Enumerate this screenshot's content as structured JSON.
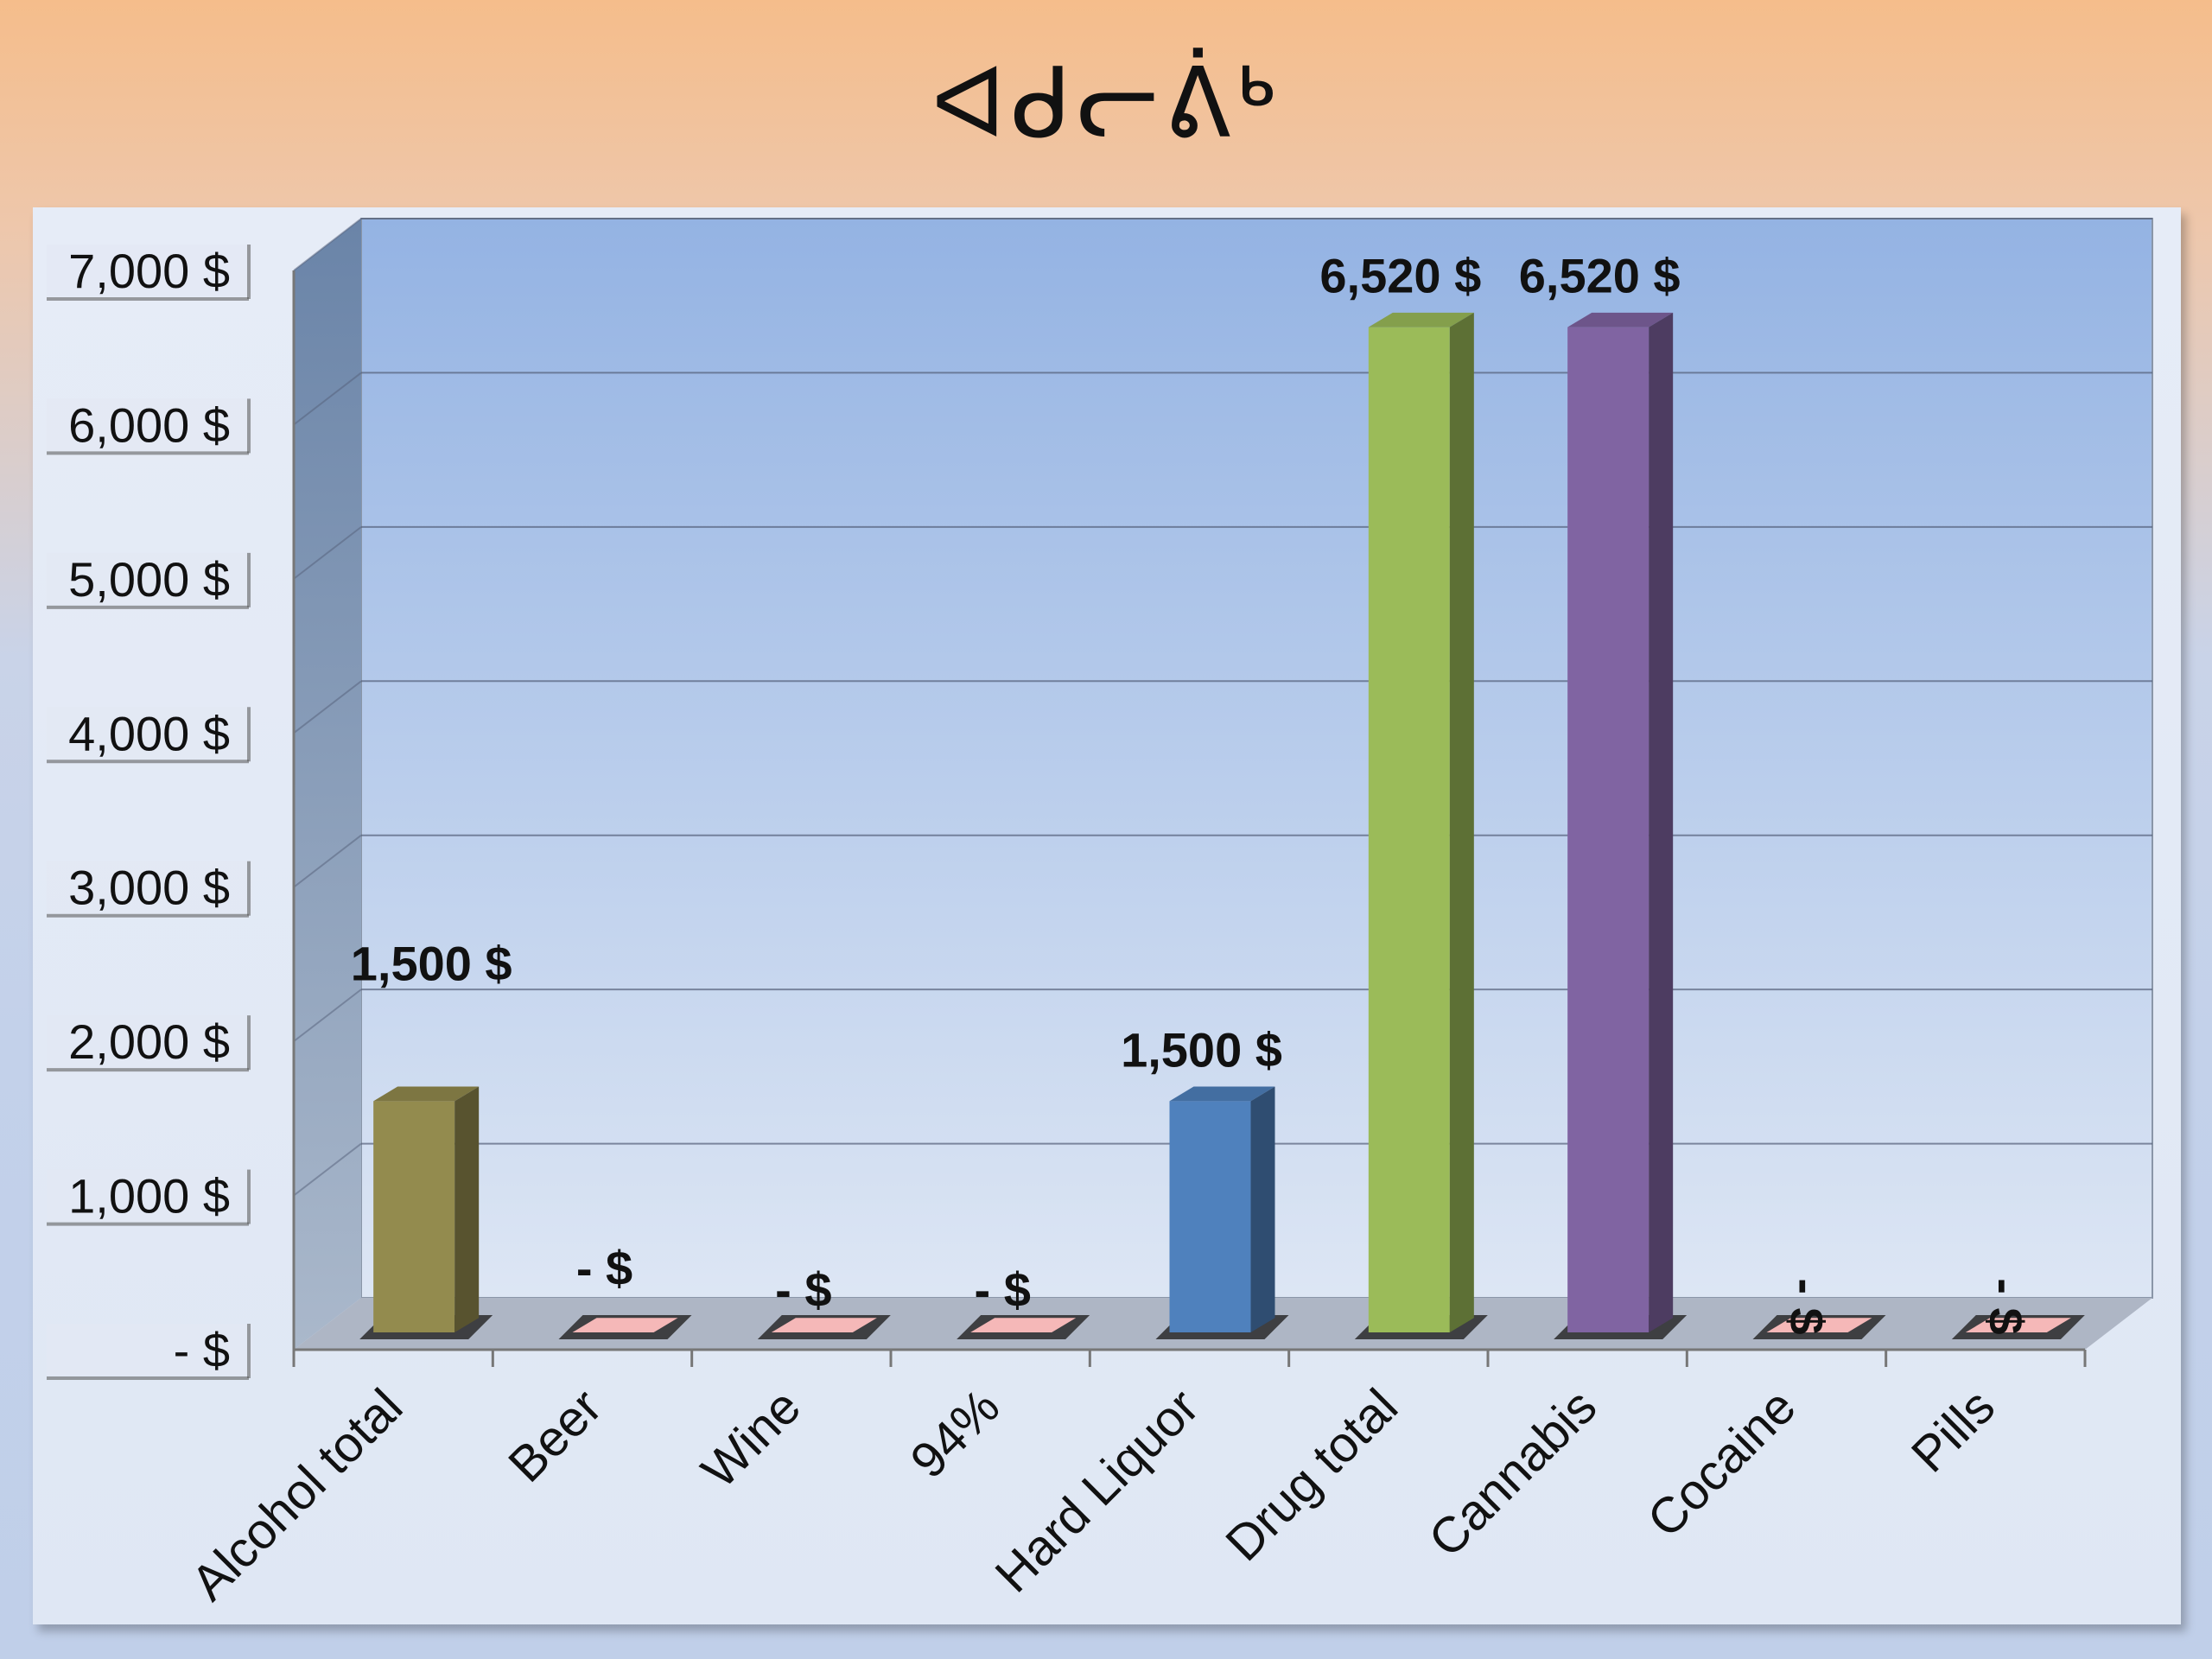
{
  "title": "ᐊᑯᓕᕖᒃ",
  "chart_data": {
    "type": "bar",
    "title": "ᐊᑯᓕᕖᒃ",
    "xlabel": "",
    "ylabel": "",
    "ylim": [
      0,
      7000
    ],
    "grid": true,
    "legend": "none",
    "categories": [
      "Alcohol total",
      "Beer",
      "Wine",
      "94%",
      "Hard Liquor",
      "Drug total",
      "Cannabis",
      "Cocaine",
      "Pills"
    ],
    "values": [
      1500,
      0,
      0,
      0,
      1500,
      6520,
      6520,
      0,
      0
    ],
    "data_labels": [
      "1,500  $",
      "-    $",
      "-    $",
      "-    $",
      "1,500  $",
      "6,520  $",
      "6,520  $",
      "-    $",
      "-    $"
    ],
    "y_ticks": [
      {
        "value": 0,
        "label": "-    $"
      },
      {
        "value": 1000,
        "label": "1,000  $"
      },
      {
        "value": 2000,
        "label": "2,000  $"
      },
      {
        "value": 3000,
        "label": "3,000  $"
      },
      {
        "value": 4000,
        "label": "4,000  $"
      },
      {
        "value": 5000,
        "label": "5,000  $"
      },
      {
        "value": 6000,
        "label": "6,000  $"
      },
      {
        "value": 7000,
        "label": "7,000  $"
      }
    ],
    "colors": [
      "#938b4e",
      "#f5b8b8",
      "#f5b8b8",
      "#f5b8b8",
      "#4f81bd",
      "#9bbb59",
      "#8064a2",
      "#f5b8b8",
      "#f5b8b8"
    ]
  }
}
